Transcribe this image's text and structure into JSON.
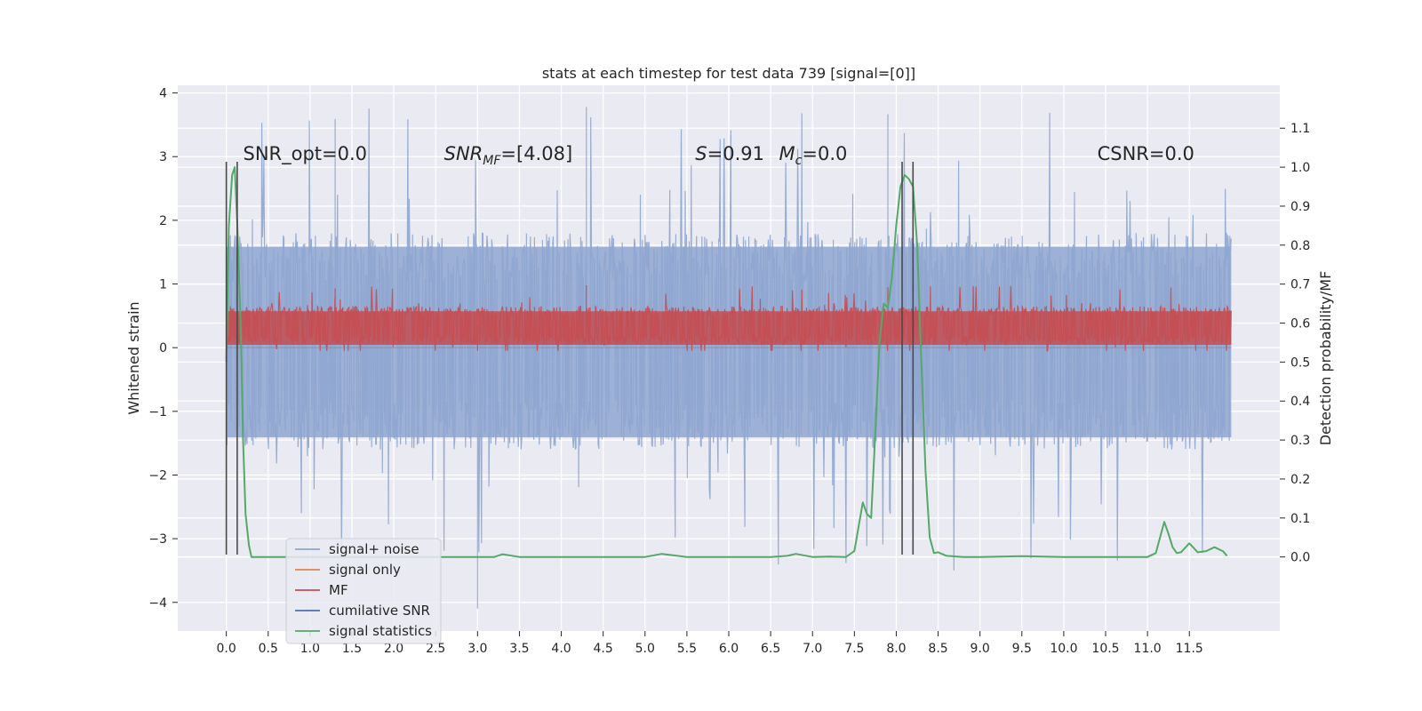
{
  "chart_data": {
    "type": "line",
    "title": "stats at each timestep for test data 739 [signal=[0]]",
    "xlabel": "",
    "ylabel_left": "Whitened strain",
    "ylabel_right": "Detection probability/MF",
    "xlim": [
      -0.58,
      12.58
    ],
    "ylim_left": [
      -4.45,
      4.12
    ],
    "ylim_right": [
      -0.19,
      1.21
    ],
    "x_ticks": [
      0.0,
      0.5,
      1.0,
      1.5,
      2.0,
      2.5,
      3.0,
      3.5,
      4.0,
      4.5,
      5.0,
      5.5,
      6.0,
      6.5,
      7.0,
      7.5,
      8.0,
      8.5,
      9.0,
      9.5,
      10.0,
      10.5,
      11.0,
      11.5
    ],
    "x_tick_labels": [
      "0.0",
      "0.5",
      "1.0",
      "1.5",
      "2.0",
      "2.5",
      "3.0",
      "3.5",
      "4.0",
      "4.5",
      "5.0",
      "5.5",
      "6.0",
      "6.5",
      "7.0",
      "7.5",
      "8.0",
      "8.5",
      "9.0",
      "9.5",
      "10.0",
      "10.5",
      "11.0",
      "11.5"
    ],
    "y_left_ticks": [
      -4,
      -3,
      -2,
      -1,
      0,
      1,
      2,
      3,
      4
    ],
    "y_left_tick_labels": [
      "−4",
      "−3",
      "−2",
      "−1",
      "0",
      "1",
      "2",
      "3",
      "4"
    ],
    "y_right_ticks": [
      0.0,
      0.1,
      0.2,
      0.3,
      0.4,
      0.5,
      0.6,
      0.7,
      0.8,
      0.9,
      1.0,
      1.1
    ],
    "y_right_tick_labels": [
      "0.0",
      "0.1",
      "0.2",
      "0.3",
      "0.4",
      "0.5",
      "0.6",
      "0.7",
      "0.8",
      "0.9",
      "1.0",
      "1.1"
    ],
    "grid": true,
    "legend_position": "lower-left",
    "annotations": [
      {
        "text": "SNR_opt=0.0",
        "x": 0.2,
        "y": 3.0
      },
      {
        "text": "SNR_MF=[4.08]",
        "x": 2.6,
        "y": 3.0
      },
      {
        "text": "S=0.91",
        "x": 5.6,
        "y": 3.0
      },
      {
        "text": "M_c=0.0",
        "x": 6.6,
        "y": 3.0
      },
      {
        "text": "CSNR=0.0",
        "x": 10.4,
        "y": 3.0
      }
    ],
    "vertical_lines_x": [
      0.0,
      0.13,
      8.07,
      8.2
    ],
    "vertical_lines_y_range": [
      -3.25,
      2.92
    ],
    "series": [
      {
        "name": "signal+ noise",
        "color": "#8fa6d0",
        "style": "noise band",
        "x_range": [
          0.0,
          12.0
        ],
        "core_range": [
          -1.6,
          1.8
        ],
        "spike_min": -4.1,
        "spike_max": 3.78
      },
      {
        "name": "signal only",
        "color": "#dd8452",
        "style": "flat at zero"
      },
      {
        "name": "MF",
        "color": "#c44e52",
        "style": "noise band",
        "x_range": [
          0.0,
          12.0
        ],
        "core_range": [
          0.05,
          0.65
        ],
        "spike_min": -0.05,
        "spike_max": 0.98
      },
      {
        "name": "cumilative SNR",
        "color": "#4c72b0",
        "style": "flat at zero"
      },
      {
        "name": "signal statistics",
        "color": "#55a868",
        "axis": "right",
        "x": [
          0.0,
          0.03,
          0.07,
          0.1,
          0.13,
          0.17,
          0.2,
          0.23,
          0.27,
          0.3,
          0.4,
          0.6,
          1.0,
          2.0,
          3.0,
          3.2,
          3.3,
          3.5,
          4.0,
          4.5,
          5.0,
          5.2,
          5.5,
          6.0,
          6.5,
          6.7,
          6.8,
          7.0,
          7.2,
          7.4,
          7.5,
          7.6,
          7.65,
          7.7,
          7.75,
          7.8,
          7.85,
          7.9,
          7.95,
          8.0,
          8.05,
          8.1,
          8.15,
          8.2,
          8.25,
          8.3,
          8.35,
          8.4,
          8.45,
          8.5,
          8.6,
          8.8,
          9.0,
          9.5,
          10.0,
          10.5,
          11.0,
          11.1,
          11.2,
          11.25,
          11.3,
          11.35,
          11.4,
          11.5,
          11.6,
          11.7,
          11.8,
          11.9,
          11.95
        ],
        "y": [
          0.5,
          0.85,
          0.98,
          1.0,
          0.86,
          0.6,
          0.3,
          0.11,
          0.03,
          0.0,
          0.0,
          0.0,
          0.0,
          0.0,
          0.0,
          0.0,
          0.007,
          0.0,
          0.0,
          0.0,
          0.0,
          0.008,
          0.0,
          0.0,
          0.0,
          0.003,
          0.008,
          0.0,
          0.001,
          0.0,
          0.015,
          0.14,
          0.11,
          0.1,
          0.32,
          0.55,
          0.65,
          0.64,
          0.72,
          0.85,
          0.95,
          0.98,
          0.97,
          0.95,
          0.8,
          0.5,
          0.22,
          0.05,
          0.01,
          0.012,
          0.003,
          0.0,
          0.0,
          0.002,
          0.0,
          0.0,
          0.0,
          0.01,
          0.09,
          0.06,
          0.025,
          0.01,
          0.012,
          0.035,
          0.012,
          0.015,
          0.025,
          0.015,
          0.003
        ]
      }
    ]
  }
}
